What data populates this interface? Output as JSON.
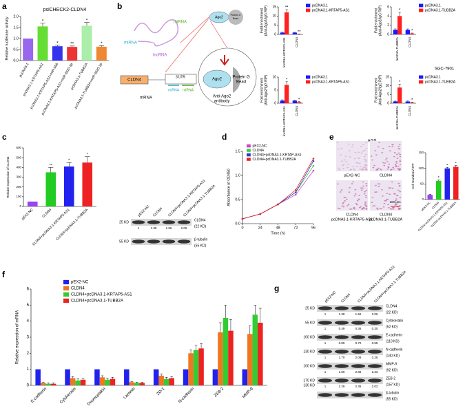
{
  "panel_labels": [
    "a",
    "b",
    "c",
    "d",
    "e",
    "f",
    "g"
  ],
  "chart_data": [
    {
      "type": "bar",
      "title": "psiCHECK2-CLDN4",
      "y_label": [
        "Relative luciferase activity"
      ],
      "categories": [
        "pcDNA3.1",
        "pcDNA3.1-KRTAP5-AS1",
        "pcDNA3.1-KRTAP5-AS1+miR-596",
        "pcDNA3.1-KRTAP5-AS1+miR-3620-3p",
        "pcDNA3.1-TUBB2A",
        "pcDNA3.1-TUBB2A+miR-3620-3p"
      ],
      "values": [
        1.0,
        1.55,
        0.65,
        0.62,
        1.58,
        0.63
      ],
      "errors": [
        null,
        0.15,
        0.05,
        0.04,
        0.15,
        0.05
      ],
      "annotations": [
        null,
        "*",
        "*",
        "**",
        "*",
        "*"
      ],
      "colors": [
        "#9966ee",
        "#66dd33",
        "#3333ee",
        "#ee3333",
        "#aaeeaa",
        "#ee8833"
      ],
      "ylim": [
        0,
        2
      ],
      "yticks": [
        {
          "value": 0,
          "label": "0.0"
        },
        {
          "value": 0.5,
          "label": "0.5"
        },
        {
          "value": 1,
          "label": "1.0"
        },
        {
          "value": 1.5,
          "label": "1.5"
        },
        {
          "value": 2,
          "label": "2.0"
        }
      ]
    },
    {
      "type": "bar",
      "y_label": [
        "Fold enrichment",
        "(Anti-Ago2/IgG RIP)"
      ],
      "categories": [
        "lncRNA-KRTAP5-AS1",
        "CLDN4"
      ],
      "series": [
        {
          "name": "pcDNA3.1",
          "color": "#1a1aff",
          "values": [
            1,
            1
          ],
          "errors": [
            0.2,
            0.15
          ]
        },
        {
          "name": "pcDNA3.1-KRTAP5-AS1",
          "color": "#ff2020",
          "values": [
            12,
            0.2
          ],
          "errors": [
            1.5,
            0.1
          ],
          "annotations": [
            "**",
            "**"
          ]
        }
      ],
      "ylim": [
        0,
        15
      ],
      "yticks": [
        0,
        5,
        10,
        15
      ]
    },
    {
      "type": "bar",
      "y_label": [
        "Fold enrichment",
        "(Anti-Ago2/IgG RIP)"
      ],
      "categories": [
        "lncRNA-TUBB2A",
        "CLDN4"
      ],
      "series": [
        {
          "name": "pcDNA3.1",
          "color": "#1a1aff",
          "values": [
            1,
            1
          ],
          "errors": [
            0.2,
            0.2
          ]
        },
        {
          "name": "pcDNA3.1-TUBB2A",
          "color": "#ff2020",
          "values": [
            4,
            0.2
          ],
          "errors": [
            0.8,
            0.1
          ],
          "annotations": [
            "*",
            "*"
          ]
        }
      ],
      "ylim": [
        0,
        6
      ],
      "yticks": [
        0,
        2,
        4,
        6
      ]
    },
    {
      "type": "bar",
      "y_label": [
        "Fold enrichment",
        "(Anti-Ago2/IgG RIP)"
      ],
      "categories": [
        "lncRNA-KRTAP5-AS1",
        "CLDN4"
      ],
      "series": [
        {
          "name": "pcDNA3.1",
          "color": "#1a1aff",
          "values": [
            1,
            1
          ],
          "errors": [
            0.3,
            0.1
          ]
        },
        {
          "name": "pcDNA3.1-KRTAP5-AS1",
          "color": "#ff2020",
          "values": [
            7,
            0.4
          ],
          "errors": [
            1.2,
            0.2
          ],
          "annotations": [
            "*",
            "*"
          ]
        }
      ],
      "ylim": [
        0,
        10
      ],
      "yticks": [
        0,
        5,
        10
      ]
    },
    {
      "type": "bar",
      "y_label": [
        "Fold enrichment",
        "(Anti-Ago2/IgG RIP)"
      ],
      "categories": [
        "lncRNA-TUBB2A",
        "CLDN4"
      ],
      "series": [
        {
          "name": "pcDNA3.1",
          "color": "#1a1aff",
          "values": [
            1,
            1
          ],
          "errors": [
            0.2,
            0.3
          ]
        },
        {
          "name": "pcDNA3.1-TUBB2A",
          "color": "#ff2020",
          "values": [
            9,
            0.4
          ],
          "errors": [
            1.8,
            0.2
          ],
          "annotations": [
            "*",
            "*"
          ]
        }
      ],
      "ylim": [
        0,
        15
      ],
      "yticks": [
        0,
        5,
        10,
        15
      ]
    },
    {
      "type": "bar",
      "y_label": [
        "Relative expression of CLDN4"
      ],
      "categories": [
        "pEX2-NC",
        "CLDN4",
        "CLDN4+pcDNA3.1-KRTAP5-AS1",
        "CLDN4+pcDNA3.1-TUBB2A"
      ],
      "values": [
        50,
        350,
        410,
        450
      ],
      "errors": [
        null,
        50,
        40,
        60
      ],
      "annotations": [
        null,
        "**",
        "*",
        "*"
      ],
      "colors": [
        "#9944ee",
        "#22cc22",
        "#2222ee",
        "#ee2222"
      ],
      "ylim": [
        0,
        600
      ],
      "yticks": [
        0,
        100,
        200,
        300,
        400,
        500,
        600
      ]
    },
    {
      "type": "line",
      "y_label": [
        "Absorbance of OD450"
      ],
      "x_label": "Time (h)",
      "x": [
        0,
        24,
        48,
        72,
        96
      ],
      "xlim": [
        0,
        96
      ],
      "xticks": [
        0,
        24,
        48,
        72,
        96
      ],
      "ylim": [
        0,
        1.5
      ],
      "yticks": [
        {
          "value": 0,
          "label": "0.0"
        },
        {
          "value": 0.5,
          "label": "0.5"
        },
        {
          "value": 1,
          "label": "1.0"
        },
        {
          "value": 1.5,
          "label": "1.5"
        }
      ],
      "series": [
        {
          "name": "pEX2-NC",
          "color": "#cc44cc",
          "values": [
            0.1,
            0.2,
            0.4,
            0.6,
            1.1
          ]
        },
        {
          "name": "CLDN4",
          "color": "#44cc44",
          "values": [
            0.1,
            0.2,
            0.4,
            0.65,
            1.2
          ]
        },
        {
          "name": "CLDN4+pcDNA3.1-KRTAP-AS1",
          "color": "#2244cc",
          "values": [
            0.1,
            0.2,
            0.4,
            0.65,
            1.3
          ]
        },
        {
          "name": "CLDN4+pcDNA3.1-TUBB2A",
          "color": "#ee2222",
          "values": [
            0.1,
            0.2,
            0.4,
            0.7,
            1.35
          ]
        }
      ]
    },
    {
      "type": "bar",
      "y_label": [
        "Cell Numbers/HPF"
      ],
      "categories": [
        "pEX2-NC",
        "CLDN4",
        "CLDN4+pcDNA3.1-KRTAP5-AS1",
        "CLDN4+pcDNA3.1-TUBB2A"
      ],
      "values": [
        15,
        60,
        100,
        105
      ],
      "errors": [
        2,
        3,
        3,
        4
      ],
      "annotations": [
        null,
        "*",
        "*",
        "*"
      ],
      "colors": [
        "#9944ee",
        "#22cc22",
        "#2222ee",
        "#ee2222"
      ],
      "ylim": [
        0,
        150
      ],
      "yticks": [
        0,
        50,
        100,
        150
      ]
    },
    {
      "type": "bar",
      "y_label": [
        "Relative expression of mRNA"
      ],
      "categories": [
        "E-cadherin",
        "Cytokeratin",
        "Desmoplakin",
        "Laminin",
        "ZO-1",
        "N-cadherin",
        "ZEB-2",
        "MMP-9"
      ],
      "series": [
        {
          "name": "pEX2-NC",
          "color": "#2222ee",
          "values": [
            1,
            1,
            1,
            1,
            1,
            1,
            1,
            1
          ]
        },
        {
          "name": "CLDN4",
          "color": "#ee7722",
          "values": [
            0.15,
            0.45,
            0.5,
            0.2,
            0.6,
            2.0,
            3.3,
            3.2
          ],
          "errors": [
            0.05,
            0.1,
            0.1,
            0.05,
            0.1,
            0.2,
            0.6,
            0.5
          ]
        },
        {
          "name": "CLDN4+pcDNA3.1-KRTAP5-AS1",
          "color": "#33cc33",
          "values": [
            0.1,
            0.3,
            0.35,
            0.15,
            0.4,
            2.2,
            4.2,
            4.4
          ],
          "errors": [
            0.05,
            0.1,
            0.1,
            0.05,
            0.1,
            0.3,
            0.8,
            0.6
          ]
        },
        {
          "name": "CLDN4+pcDNA3.1-TUBB2A",
          "color": "#ee2222",
          "values": [
            0.1,
            0.35,
            0.4,
            0.15,
            0.45,
            2.3,
            3.4,
            3.9
          ],
          "errors": [
            0.05,
            0.1,
            0.1,
            0.05,
            0.1,
            0.3,
            0.7,
            0.9
          ]
        }
      ],
      "ylim": [
        0,
        6
      ],
      "yticks": [
        0,
        1,
        2,
        3,
        4,
        5,
        6
      ]
    }
  ],
  "panel_b": {
    "cell_lines": [
      "SGC-7901",
      "AGS"
    ]
  },
  "diagram": {
    "mirna_top": "miRNA",
    "mirna_left": "miRNA",
    "lncrna": "lncRNA",
    "ago2_small": "Ago2",
    "bead_small": [
      "Protein G",
      "Bead"
    ],
    "gene": "CLDN4",
    "utr": "3'UTR",
    "utr_mirna_1": "miRNA",
    "utr_mirna_2": "miRNA",
    "mrna": "mRNA",
    "ago2": "Ago2",
    "bead": [
      "Protein G",
      "Bead"
    ],
    "antibody": [
      "Anti-Ago2",
      "antibody"
    ]
  },
  "blot_c": {
    "lanes": [
      "pEX2-NC",
      "CLDN4",
      "CLDN4+pcDNA3.1-KRTAP5-AS1",
      "CLDN4+pcDNA3.1-TUBB2A"
    ],
    "rows": [
      {
        "markers": [
          "25 KD"
        ],
        "protein": "CLDN4",
        "size": "(22 KD)",
        "quant": [
          "1",
          "1.38",
          "1.56",
          "2.06"
        ]
      },
      {
        "markers": [
          "55 KD"
        ],
        "protein": "β-tubulin",
        "size": "(55 KD)"
      }
    ]
  },
  "panel_e": {
    "image_labels": [
      [
        "pEX2-NC"
      ],
      [
        "CLDN4"
      ],
      [
        "CLDN4",
        "pcDNA3.1-KRTAP5-AS1"
      ],
      [
        "CLDN4",
        "pcDNA3.1-TUBB2A"
      ]
    ],
    "scale_bar": "100 μm"
  },
  "blot_g": {
    "lanes": [
      "pEX2-NC",
      "CLDN4",
      "CLDN4+pcDNA3.1-KRTAP5-AS1",
      "CLDN4+pcDNA3.1-TUBB2A"
    ],
    "rows": [
      {
        "markers": [
          "25 KD"
        ],
        "protein": "CLDN4",
        "size": "(22 KD)",
        "quant": [
          "1",
          "1.38",
          "1.56",
          "2.06"
        ]
      },
      {
        "markers": [
          "55 KD"
        ],
        "protein": "Cytokeratin",
        "size": "(52 KD)",
        "quant": [
          "1",
          "0.49",
          "0.36",
          "0.30"
        ]
      },
      {
        "markers": [
          "100 KD"
        ],
        "protein": "E-cadherin",
        "size": "(110 KD)",
        "quant": [
          "1",
          "0.89",
          "0.70",
          "0.55"
        ]
      },
      {
        "markers": [
          "130 KD"
        ],
        "protein": "N-cadherin",
        "size": "(140 KD)",
        "quant": [
          "1",
          "1.70",
          "2.09",
          "2.25"
        ]
      },
      {
        "markers": [
          "100 KD"
        ],
        "protein": "MMP-9",
        "size": "(92 KD)",
        "quant": [
          "1",
          "1.60",
          "2.86",
          "2.33"
        ]
      },
      {
        "markers": [
          "170 KD",
          "130 KD"
        ],
        "protein": "ZEB-2",
        "size": "(157 KD)",
        "quant": [
          "1",
          "1.29",
          "2.35",
          "2.02"
        ]
      },
      {
        "protein": "β-tubulin",
        "size": "(55 KD)"
      }
    ]
  }
}
